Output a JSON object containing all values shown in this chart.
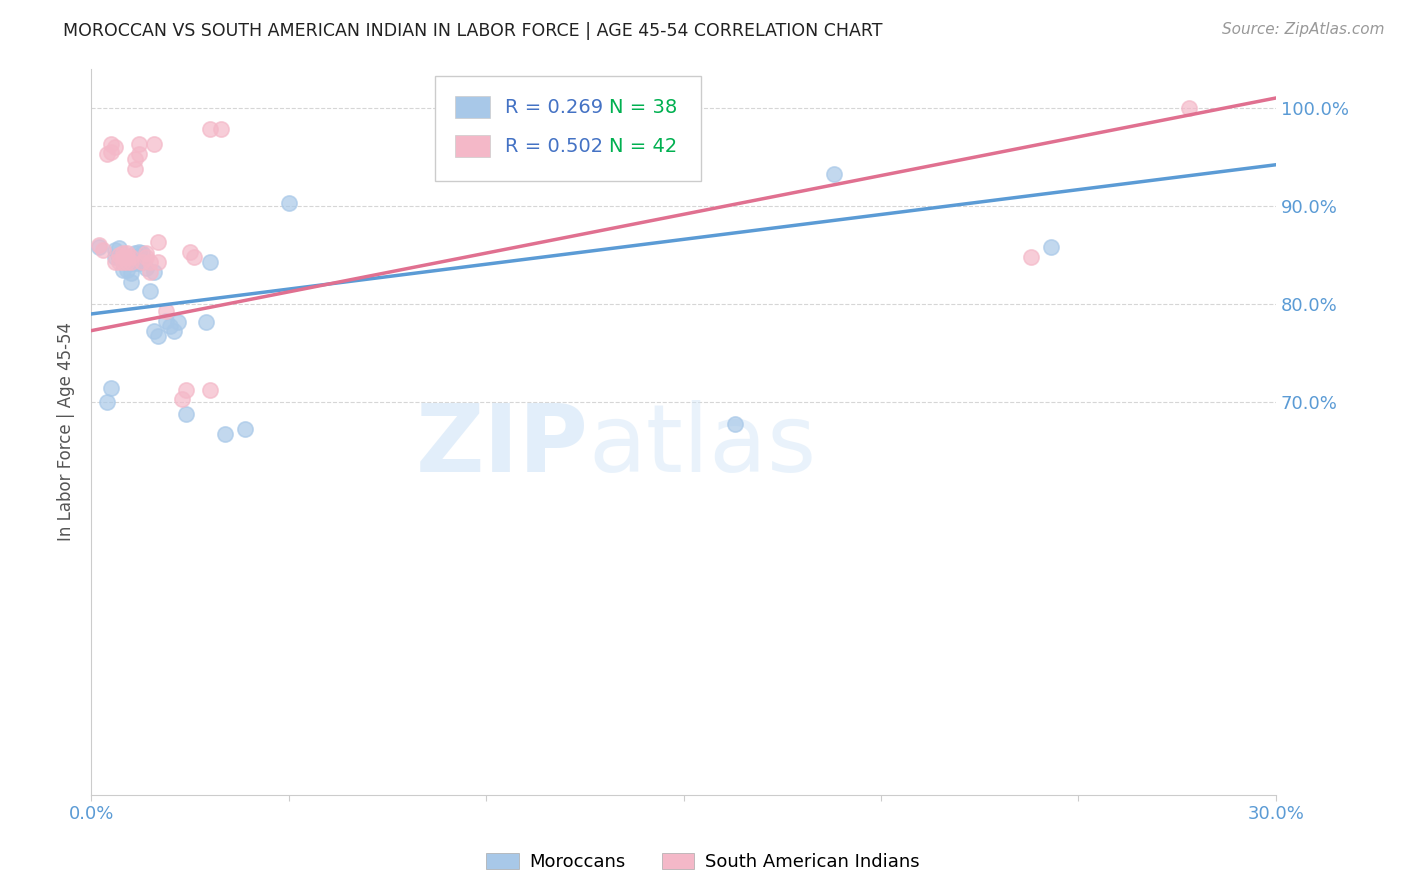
{
  "title": "MOROCCAN VS SOUTH AMERICAN INDIAN IN LABOR FORCE | AGE 45-54 CORRELATION CHART",
  "source": "Source: ZipAtlas.com",
  "ylabel": "In Labor Force | Age 45-54",
  "xlim": [
    0.0,
    0.3
  ],
  "ylim": [
    0.3,
    1.04
  ],
  "xticks": [
    0.0,
    0.05,
    0.1,
    0.15,
    0.2,
    0.25,
    0.3
  ],
  "xticklabels": [
    "0.0%",
    "",
    "",
    "",
    "",
    "",
    "30.0%"
  ],
  "yticks": [
    0.7,
    0.8,
    0.9,
    1.0
  ],
  "yticklabels": [
    "70.0%",
    "80.0%",
    "90.0%",
    "100.0%"
  ],
  "blue_color": "#a8c8e8",
  "pink_color": "#f4b8c8",
  "blue_line_color": "#5b9bd5",
  "pink_line_color": "#e07090",
  "blue_label": "Moroccans",
  "pink_label": "South American Indians",
  "title_color": "#222222",
  "tick_color": "#5b9bd5",
  "watermark_zip": "ZIP",
  "watermark_atlas": "atlas",
  "blue_points_x": [
    0.002,
    0.004,
    0.005,
    0.006,
    0.006,
    0.007,
    0.007,
    0.008,
    0.008,
    0.009,
    0.009,
    0.01,
    0.01,
    0.01,
    0.011,
    0.011,
    0.012,
    0.012,
    0.013,
    0.013,
    0.014,
    0.015,
    0.016,
    0.016,
    0.017,
    0.019,
    0.02,
    0.021,
    0.022,
    0.024,
    0.029,
    0.03,
    0.034,
    0.039,
    0.05,
    0.163,
    0.188,
    0.243
  ],
  "blue_points_y": [
    0.858,
    0.7,
    0.715,
    0.848,
    0.855,
    0.848,
    0.857,
    0.835,
    0.845,
    0.835,
    0.843,
    0.823,
    0.832,
    0.842,
    0.842,
    0.852,
    0.842,
    0.853,
    0.843,
    0.852,
    0.837,
    0.813,
    0.773,
    0.833,
    0.768,
    0.783,
    0.778,
    0.773,
    0.782,
    0.688,
    0.782,
    0.843,
    0.668,
    0.673,
    0.903,
    0.678,
    0.933,
    0.858
  ],
  "pink_points_x": [
    0.002,
    0.003,
    0.004,
    0.005,
    0.005,
    0.006,
    0.006,
    0.007,
    0.007,
    0.008,
    0.008,
    0.008,
    0.009,
    0.009,
    0.009,
    0.01,
    0.01,
    0.011,
    0.011,
    0.012,
    0.012,
    0.013,
    0.014,
    0.014,
    0.015,
    0.015,
    0.016,
    0.017,
    0.017,
    0.019,
    0.023,
    0.024,
    0.025,
    0.026,
    0.03,
    0.03,
    0.033,
    0.148,
    0.15,
    0.151,
    0.238,
    0.278
  ],
  "pink_points_y": [
    0.86,
    0.855,
    0.953,
    0.955,
    0.963,
    0.96,
    0.843,
    0.843,
    0.85,
    0.843,
    0.848,
    0.852,
    0.843,
    0.848,
    0.852,
    0.843,
    0.848,
    0.938,
    0.948,
    0.953,
    0.963,
    0.843,
    0.848,
    0.852,
    0.833,
    0.843,
    0.963,
    0.843,
    0.863,
    0.793,
    0.703,
    0.713,
    0.853,
    0.848,
    0.978,
    0.713,
    0.978,
    1.0,
    1.0,
    1.0,
    0.848,
    1.0
  ],
  "blue_line_x0": 0.0,
  "blue_line_x1": 0.3,
  "blue_line_y0": 0.79,
  "blue_line_y1": 0.942,
  "pink_line_x0": 0.0,
  "pink_line_x1": 0.3,
  "pink_line_y0": 0.773,
  "pink_line_y1": 1.01
}
